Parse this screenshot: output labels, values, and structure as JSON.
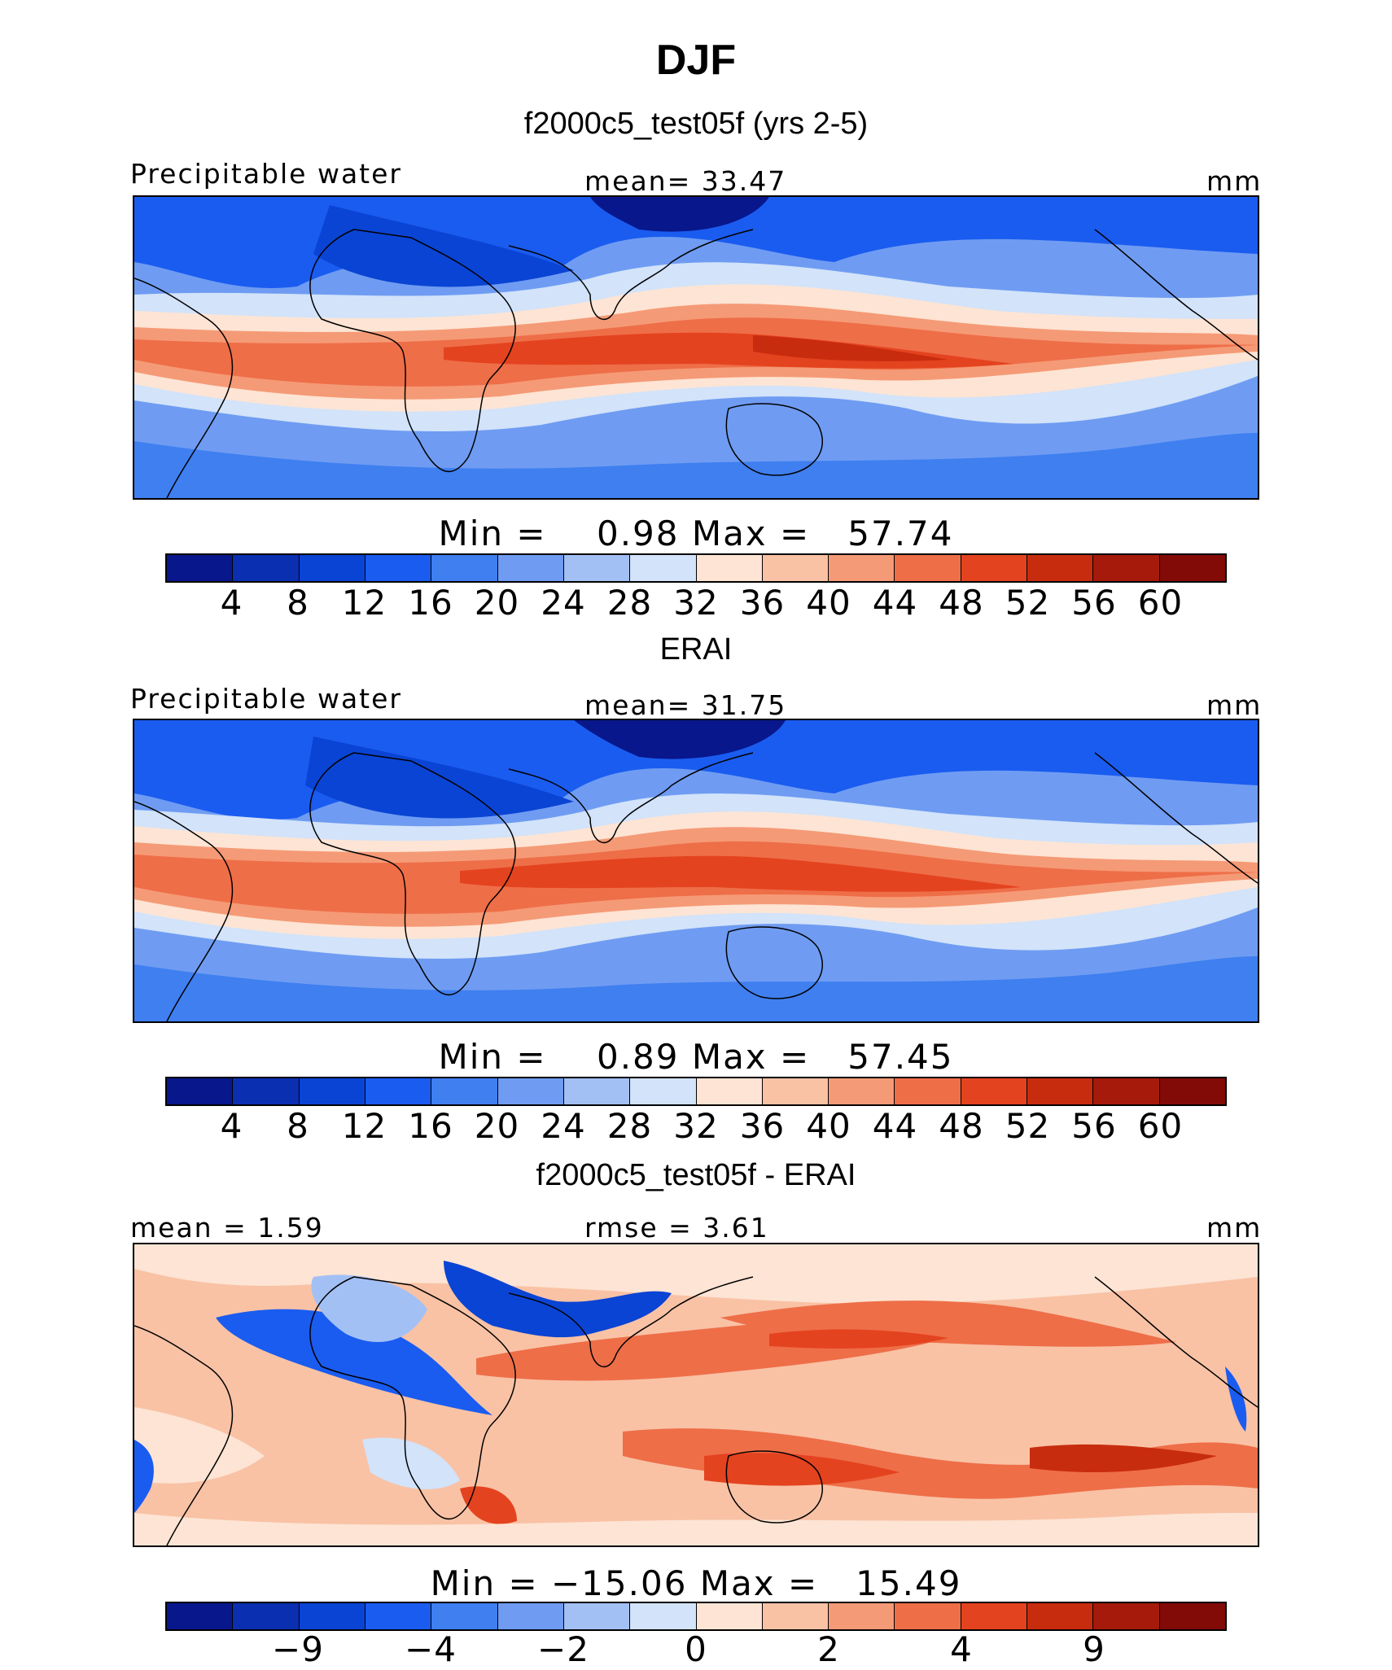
{
  "figure": {
    "title": "DJF"
  },
  "palette": [
    "#08178b",
    "#0a2fb0",
    "#0a44d4",
    "#1a5cf0",
    "#3f7ff0",
    "#6f9cf2",
    "#a3c0f5",
    "#d2e3fa",
    "#fde4d4",
    "#f9c2a5",
    "#f59a76",
    "#ee6e48",
    "#e4431f",
    "#c82c0e",
    "#a51a0a",
    "#820a07"
  ],
  "chart_data": [
    {
      "type": "heatmap",
      "title": "f2000c5_test05f (yrs 2-5)",
      "variable_label": "Precipitable water",
      "stat_label": "mean=   33.47",
      "units": "mm",
      "mean": 33.47,
      "min": 0.98,
      "max": 57.74,
      "min_max_text": "Min =    0.98 Max =   57.74",
      "colorbar_levels": [
        4,
        8,
        12,
        16,
        20,
        24,
        28,
        32,
        36,
        40,
        44,
        48,
        52,
        56,
        60
      ],
      "colorbar_labels": [
        "4",
        "8",
        "12",
        "16",
        "20",
        "24",
        "28",
        "32",
        "36",
        "40",
        "44",
        "48",
        "52",
        "56",
        "60"
      ],
      "colorbar_label_indices": [
        0,
        1,
        2,
        3,
        4,
        5,
        6,
        7,
        8,
        9,
        10,
        11,
        12,
        13,
        14
      ]
    },
    {
      "type": "heatmap",
      "title": "ERAI",
      "variable_label": "Precipitable water",
      "stat_label": "mean=   31.75",
      "units": "mm",
      "mean": 31.75,
      "min": 0.89,
      "max": 57.45,
      "min_max_text": "Min =    0.89 Max =   57.45",
      "colorbar_levels": [
        4,
        8,
        12,
        16,
        20,
        24,
        28,
        32,
        36,
        40,
        44,
        48,
        52,
        56,
        60
      ],
      "colorbar_labels": [
        "4",
        "8",
        "12",
        "16",
        "20",
        "24",
        "28",
        "32",
        "36",
        "40",
        "44",
        "48",
        "52",
        "56",
        "60"
      ],
      "colorbar_label_indices": [
        0,
        1,
        2,
        3,
        4,
        5,
        6,
        7,
        8,
        9,
        10,
        11,
        12,
        13,
        14
      ]
    },
    {
      "type": "heatmap",
      "title": "f2000c5_test05f - ERAI",
      "variable_label": "mean =    1.59",
      "stat_label": "rmse =    3.61",
      "units": "mm",
      "mean": 1.59,
      "rmse": 3.61,
      "min": -15.06,
      "max": 15.49,
      "min_max_text": "Min = −15.06 Max =   15.49",
      "colorbar_levels": [
        -12,
        -9,
        -6,
        -4,
        -3,
        -2,
        -1,
        0,
        1,
        2,
        3,
        4,
        6,
        9,
        12
      ],
      "colorbar_labels": [
        "−9",
        "−4",
        "−2",
        "0",
        "2",
        "4",
        "9"
      ],
      "colorbar_label_indices": [
        1,
        3,
        5,
        7,
        9,
        11,
        13
      ]
    }
  ]
}
